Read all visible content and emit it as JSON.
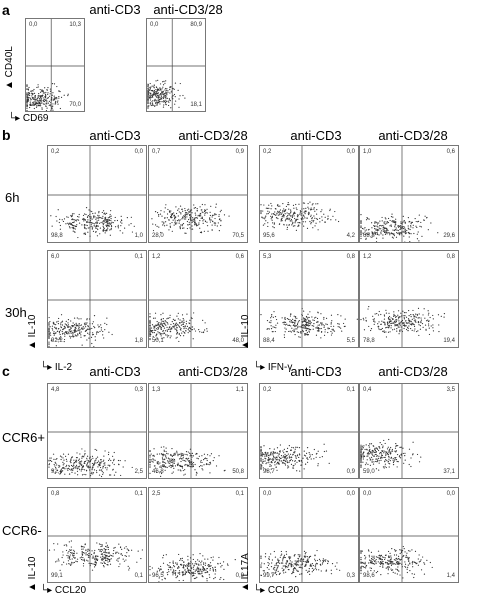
{
  "panels": {
    "a": {
      "letter": "a",
      "col_titles": [
        "anti-CD3",
        "anti-CD3/28"
      ],
      "y_axis": "CD40L",
      "x_axis": "CD69",
      "plots": [
        {
          "tl": "0,0",
          "tr": "10,3",
          "bl": "19,6",
          "br": "70,0"
        },
        {
          "tl": "0,0",
          "tr": "80,9",
          "bl": "0,9",
          "br": "18,1"
        }
      ]
    },
    "b": {
      "letter": "b",
      "col_titles": [
        "anti-CD3",
        "anti-CD3/28",
        "anti-CD3",
        "anti-CD3/28"
      ],
      "row_labels": [
        "6h",
        "30h"
      ],
      "y_axis_left": "IL-10",
      "x_axis_left": "IL-2",
      "y_axis_right": "IL-10",
      "x_axis_right": "IFN-γ",
      "plots": [
        [
          {
            "tl": "0,2",
            "tr": "0,0",
            "bl": "98,8",
            "br": "1,0"
          },
          {
            "tl": "0,7",
            "tr": "0,9",
            "bl": "28,0",
            "br": "70,5"
          },
          {
            "tl": "0,2",
            "tr": "0,0",
            "bl": "95,6",
            "br": "4,2"
          },
          {
            "tl": "1,0",
            "tr": "0,6",
            "bl": "68,8",
            "br": "29,6"
          }
        ],
        [
          {
            "tl": "6,0",
            "tr": "0,1",
            "bl": "92,2",
            "br": "1,8"
          },
          {
            "tl": "1,2",
            "tr": "0,6",
            "bl": "50,1",
            "br": "48,0"
          },
          {
            "tl": "5,3",
            "tr": "0,8",
            "bl": "88,4",
            "br": "5,5"
          },
          {
            "tl": "1,2",
            "tr": "0,8",
            "bl": "78,8",
            "br": "19,4"
          }
        ]
      ]
    },
    "c": {
      "letter": "c",
      "col_titles": [
        "anti-CD3",
        "anti-CD3/28",
        "anti-CD3",
        "anti-CD3/28"
      ],
      "row_labels": [
        "CCR6+",
        "CCR6-"
      ],
      "y_axis_left": "IL-10",
      "x_axis_left": "CCL20",
      "y_axis_right": "IL17A",
      "x_axis_right": "CCL20",
      "plots": [
        [
          {
            "tl": "4,8",
            "tr": "0,3",
            "bl": "92,4",
            "br": "2,5"
          },
          {
            "tl": "1,3",
            "tr": "1,1",
            "bl": "46,8",
            "br": "50,8"
          },
          {
            "tl": "0,2",
            "tr": "0,1",
            "bl": "98,7",
            "br": "0,9"
          },
          {
            "tl": "0,4",
            "tr": "3,5",
            "bl": "59,0",
            "br": "37,1"
          }
        ],
        [
          {
            "tl": "0,8",
            "tr": "0,1",
            "bl": "99,1",
            "br": "0,1"
          },
          {
            "tl": "2,5",
            "tr": "0,1",
            "bl": "96,5",
            "br": "0,9"
          },
          {
            "tl": "0,0",
            "tr": "0,0",
            "bl": "99,7",
            "br": "0,3"
          },
          {
            "tl": "0,0",
            "tr": "0,0",
            "bl": "98,6",
            "br": "1,4"
          }
        ]
      ]
    }
  }
}
